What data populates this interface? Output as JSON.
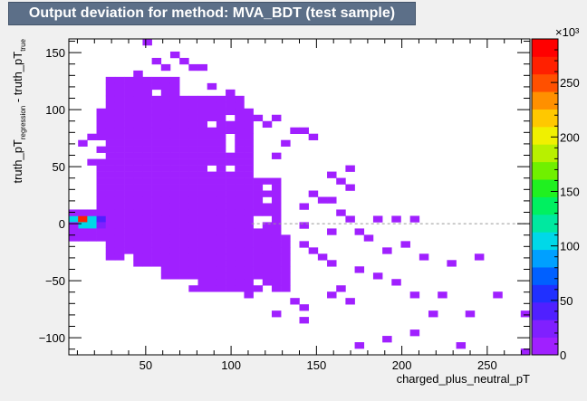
{
  "chart_data": {
    "type": "heatmap",
    "title": "Output deviation for method: MVA_BDT (test sample)",
    "xlabel": "charged_plus_neutral_pT",
    "ylabel_main": "truth_pT",
    "ylabel_sub1": "regression",
    "ylabel_mid": " - truth_pT",
    "ylabel_sub2": "true",
    "xlim": [
      5,
      275
    ],
    "ylim": [
      -115,
      162
    ],
    "x_ticks": [
      50,
      100,
      150,
      200,
      250
    ],
    "y_ticks": [
      -100,
      -50,
      0,
      50,
      100,
      150
    ],
    "zlim": [
      0,
      290
    ],
    "z_ticks": [
      0,
      50,
      100,
      150,
      200,
      250
    ],
    "z_multiplier": "×10³",
    "bin_width_x": 5.4,
    "bin_width_y": 5.54,
    "reference_line_y": 0,
    "hot_bins": [
      {
        "x": 10,
        "y": 5,
        "z": 100
      },
      {
        "x": 15,
        "y": 5,
        "z": 260
      },
      {
        "x": 20,
        "y": 5,
        "z": 100
      },
      {
        "x": 25,
        "y": 5,
        "z": 40
      },
      {
        "x": 15,
        "y": 0,
        "z": 100
      },
      {
        "x": 20,
        "y": 0,
        "z": 100
      },
      {
        "x": 25,
        "y": 0,
        "z": 30
      }
    ],
    "low_regions": [
      {
        "x": [
          10,
          40
        ],
        "y": [
          -15,
          10
        ]
      },
      {
        "x": [
          25,
          115
        ],
        "y": [
          -15,
          100
        ]
      },
      {
        "x": [
          28,
          70
        ],
        "y": [
          -30,
          130
        ]
      },
      {
        "x": [
          40,
          90
        ],
        "y": [
          -25,
          110
        ]
      },
      {
        "x": [
          45,
          110
        ],
        "y": [
          -35,
          70
        ]
      },
      {
        "x": [
          60,
          130
        ],
        "y": [
          -45,
          40
        ]
      },
      {
        "x": [
          80,
          135
        ],
        "y": [
          -55,
          -10
        ]
      },
      {
        "x": [
          30,
          110
        ],
        "y": [
          100,
          115
        ]
      }
    ],
    "low_scatter": [
      [
        52,
        160
      ],
      [
        68,
        150
      ],
      [
        72,
        143
      ],
      [
        78,
        138
      ],
      [
        85,
        135
      ],
      [
        55,
        145
      ],
      [
        60,
        138
      ],
      [
        45,
        130
      ],
      [
        90,
        122
      ],
      [
        98,
        110
      ],
      [
        102,
        115
      ],
      [
        115,
        90
      ],
      [
        122,
        85
      ],
      [
        128,
        90
      ],
      [
        135,
        80
      ],
      [
        142,
        82
      ],
      [
        150,
        75
      ],
      [
        130,
        68
      ],
      [
        125,
        60
      ],
      [
        160,
        45
      ],
      [
        165,
        38
      ],
      [
        168,
        48
      ],
      [
        172,
        30
      ],
      [
        148,
        25
      ],
      [
        155,
        22
      ],
      [
        158,
        18
      ],
      [
        140,
        15
      ],
      [
        162,
        10
      ],
      [
        168,
        5
      ],
      [
        185,
        5
      ],
      [
        195,
        5
      ],
      [
        210,
        5
      ],
      [
        145,
        0
      ],
      [
        160,
        -5
      ],
      [
        175,
        -8
      ],
      [
        180,
        -15
      ],
      [
        190,
        -25
      ],
      [
        200,
        -20
      ],
      [
        215,
        -30
      ],
      [
        230,
        -35
      ],
      [
        245,
        -30
      ],
      [
        150,
        -25
      ],
      [
        160,
        -35
      ],
      [
        175,
        -40
      ],
      [
        185,
        -45
      ],
      [
        195,
        -50
      ],
      [
        210,
        -60
      ],
      [
        225,
        -65
      ],
      [
        255,
        -62
      ],
      [
        240,
        -80
      ],
      [
        220,
        -80
      ],
      [
        205,
        -95
      ],
      [
        175,
        -105
      ],
      [
        190,
        -100
      ],
      [
        232,
        -108
      ],
      [
        270,
        -115
      ],
      [
        160,
        -65
      ],
      [
        170,
        -70
      ],
      [
        135,
        -70
      ],
      [
        140,
        -82
      ],
      [
        125,
        -80
      ],
      [
        145,
        -75
      ],
      [
        110,
        -62
      ],
      [
        100,
        -55
      ],
      [
        130,
        -28
      ],
      [
        118,
        -22
      ],
      [
        105,
        -18
      ],
      [
        140,
        -20
      ],
      [
        155,
        -30
      ],
      [
        165,
        -55
      ],
      [
        75,
        -40
      ],
      [
        55,
        -30
      ],
      [
        60,
        -25
      ],
      [
        20,
        55
      ],
      [
        15,
        70
      ],
      [
        18,
        78
      ],
      [
        22,
        88
      ],
      [
        40,
        40
      ],
      [
        33,
        100
      ],
      [
        38,
        105
      ],
      [
        272,
        -80
      ]
    ]
  },
  "colors": {
    "frame_bg": "#f0f0f0",
    "title_bg": "#5c6f88",
    "palette": [
      "#a020ff",
      "#8020ff",
      "#5020ff",
      "#2030ff",
      "#0060ff",
      "#00a0ff",
      "#00d8e8",
      "#00e8a0",
      "#00f060",
      "#20f020",
      "#70f000",
      "#b8f000",
      "#f0f000",
      "#ffc800",
      "#ff9000",
      "#ff5000",
      "#ff2000",
      "#ff0000"
    ]
  }
}
